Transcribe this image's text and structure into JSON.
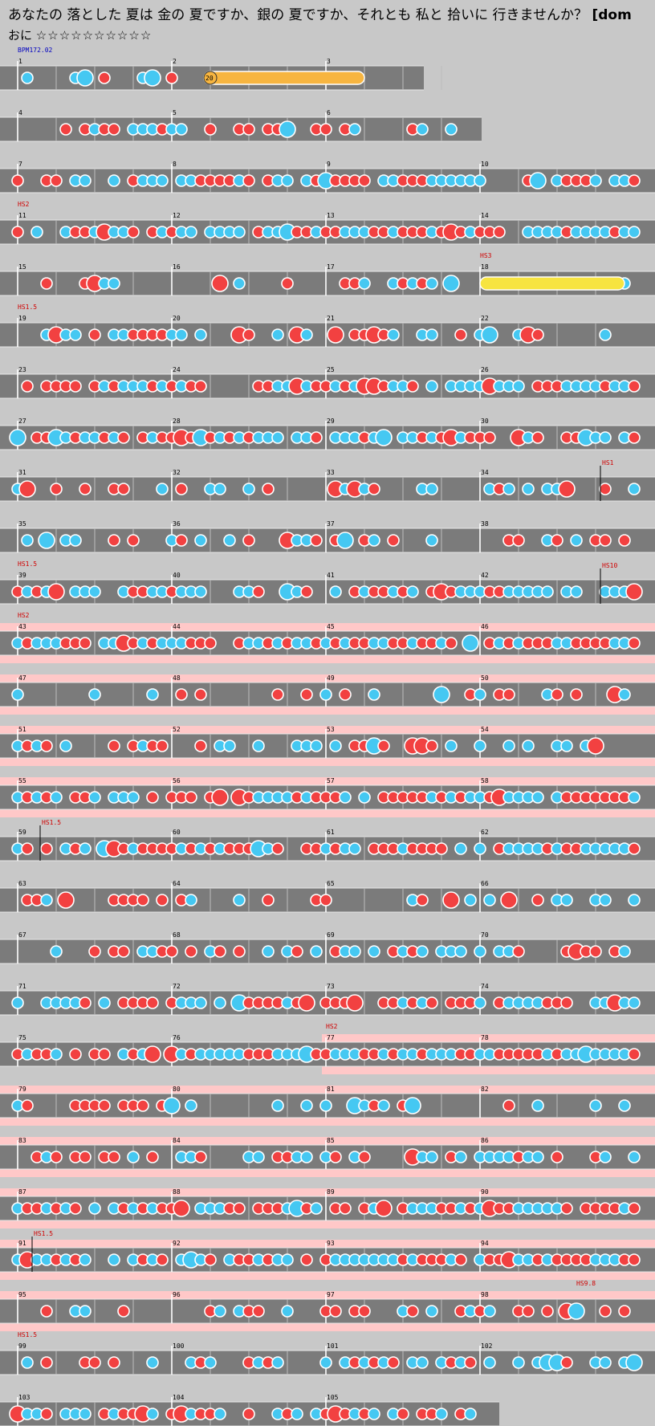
{
  "song": {
    "title_main": "あなたの 落とした 夏は 金の 夏ですか、銀の 夏ですか、それとも 私と 拾いに 行きませんか？",
    "title_tag": "[dom",
    "difficulty": "おに",
    "stars": "☆☆☆☆☆☆☆☆☆☆"
  },
  "colors": {
    "don": "#f24141",
    "ka": "#45c8f2",
    "roll": "#f7b540",
    "balloon_yellow": "#f7e440",
    "lane": "#7b7b7b",
    "gogo": "#ffc8c8"
  },
  "bpm_label": "BPM172.02",
  "roll_count": "20",
  "chart_data": {
    "type": "table",
    "rows": [
      {
        "measures": [
          1,
          2,
          3
        ],
        "width": 3
      },
      {
        "measures": [
          4,
          5,
          6
        ],
        "width": 3
      },
      {
        "measures": [
          7,
          8,
          9,
          10
        ],
        "width": 4
      },
      {
        "measures": [
          11,
          12,
          13,
          14
        ],
        "width": 4,
        "label": "HS2"
      },
      {
        "measures": [
          15,
          16,
          17,
          18
        ],
        "width": 4,
        "label2": "HS3"
      },
      {
        "measures": [
          19,
          20,
          21,
          22
        ],
        "width": 4,
        "label": "HS1.5"
      },
      {
        "measures": [
          23,
          24,
          25,
          26
        ],
        "width": 4
      },
      {
        "measures": [
          27,
          28,
          29,
          30
        ],
        "width": 4
      },
      {
        "measures": [
          31,
          32,
          33,
          34
        ],
        "width": 4,
        "marker": "HS1"
      },
      {
        "measures": [
          35,
          36,
          37,
          38
        ],
        "width": 4
      },
      {
        "measures": [
          39,
          40,
          41,
          42
        ],
        "width": 4,
        "label": "HS1.5",
        "marker": "HS10"
      },
      {
        "measures": [
          43,
          44,
          45,
          46
        ],
        "width": 4,
        "label": "HS2",
        "gogo": true
      },
      {
        "measures": [
          47,
          48,
          49,
          50
        ],
        "width": 4,
        "gogo": true
      },
      {
        "measures": [
          51,
          52,
          53,
          54
        ],
        "width": 4,
        "gogo": true
      },
      {
        "measures": [
          55,
          56,
          57,
          58
        ],
        "width": 4,
        "gogo": true
      },
      {
        "measures": [
          59,
          60,
          61,
          62
        ],
        "width": 4,
        "marker": "HS1.5"
      },
      {
        "measures": [
          63,
          64,
          65,
          66
        ],
        "width": 4
      },
      {
        "measures": [
          67,
          68,
          69,
          70
        ],
        "width": 4
      },
      {
        "measures": [
          71,
          72,
          73,
          74
        ],
        "width": 4
      },
      {
        "measures": [
          75,
          76,
          77,
          78
        ],
        "width": 4,
        "label3": "HS2",
        "gogo_from": 2
      },
      {
        "measures": [
          79,
          80,
          81,
          82
        ],
        "width": 4,
        "gogo": true
      },
      {
        "measures": [
          83,
          84,
          85,
          86
        ],
        "width": 4,
        "gogo": true
      },
      {
        "measures": [
          87,
          88,
          89,
          90
        ],
        "width": 4,
        "gogo": true
      },
      {
        "measures": [
          91,
          92,
          93,
          94
        ],
        "width": 4,
        "marker": "HS1.5",
        "gogo": true
      },
      {
        "measures": [
          95,
          96,
          97,
          98
        ],
        "width": 4,
        "gogo": true,
        "label4": "HS9.8"
      },
      {
        "measures": [
          99,
          100,
          101,
          102
        ],
        "width": 4,
        "label": "HS1.5"
      },
      {
        "measures": [
          103,
          104,
          105
        ],
        "width": 3
      }
    ]
  }
}
